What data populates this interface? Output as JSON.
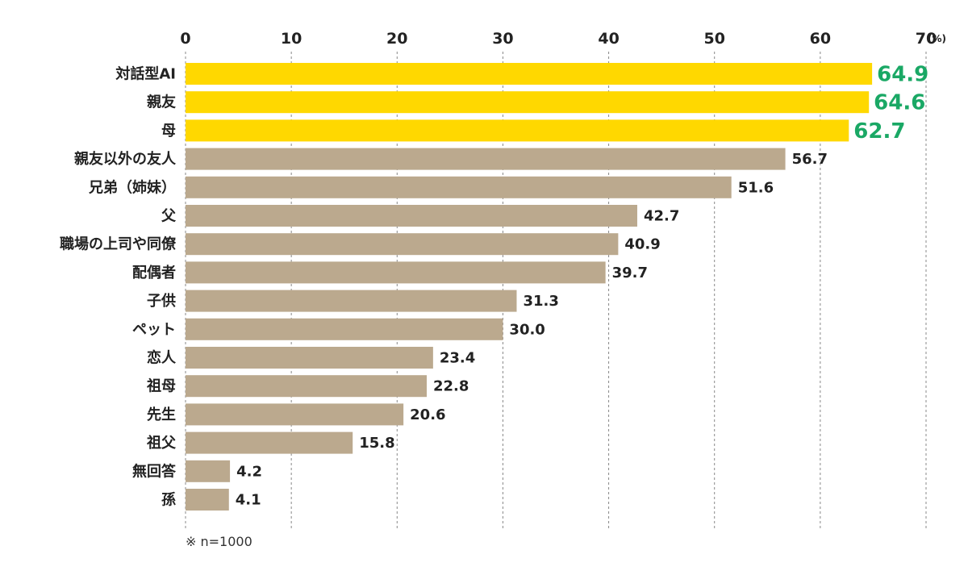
{
  "chart_data": {
    "type": "bar",
    "orientation": "horizontal",
    "unit": "(%)",
    "xlim": [
      0,
      70
    ],
    "ticks": [
      0,
      10,
      20,
      30,
      40,
      50,
      60,
      70
    ],
    "grid": "vertical-dashed",
    "categories": [
      "対話型AI",
      "親友",
      "母",
      "親友以外の友人",
      "兄弟（姉妹）",
      "父",
      "職場の上司や同僚",
      "配偶者",
      "子供",
      "ペット",
      "恋人",
      "祖母",
      "先生",
      "祖父",
      "無回答",
      "孫"
    ],
    "values": [
      64.9,
      64.6,
      62.7,
      56.7,
      51.6,
      42.7,
      40.9,
      39.7,
      31.3,
      30.0,
      23.4,
      22.8,
      20.6,
      15.8,
      4.2,
      4.1
    ],
    "value_labels": [
      "64.9",
      "64.6",
      "62.7",
      "56.7",
      "51.6",
      "42.7",
      "40.9",
      "39.7",
      "31.3",
      "30.0",
      "23.4",
      "22.8",
      "20.6",
      "15.8",
      "4.2",
      "4.1"
    ],
    "highlight_count": 3,
    "colors": {
      "highlight_bar": "#ffd800",
      "bar": "#bba98e",
      "highlight_value": "#1aa865",
      "value": "#222222",
      "grid": "#888888"
    },
    "note": "※ n=1000"
  }
}
